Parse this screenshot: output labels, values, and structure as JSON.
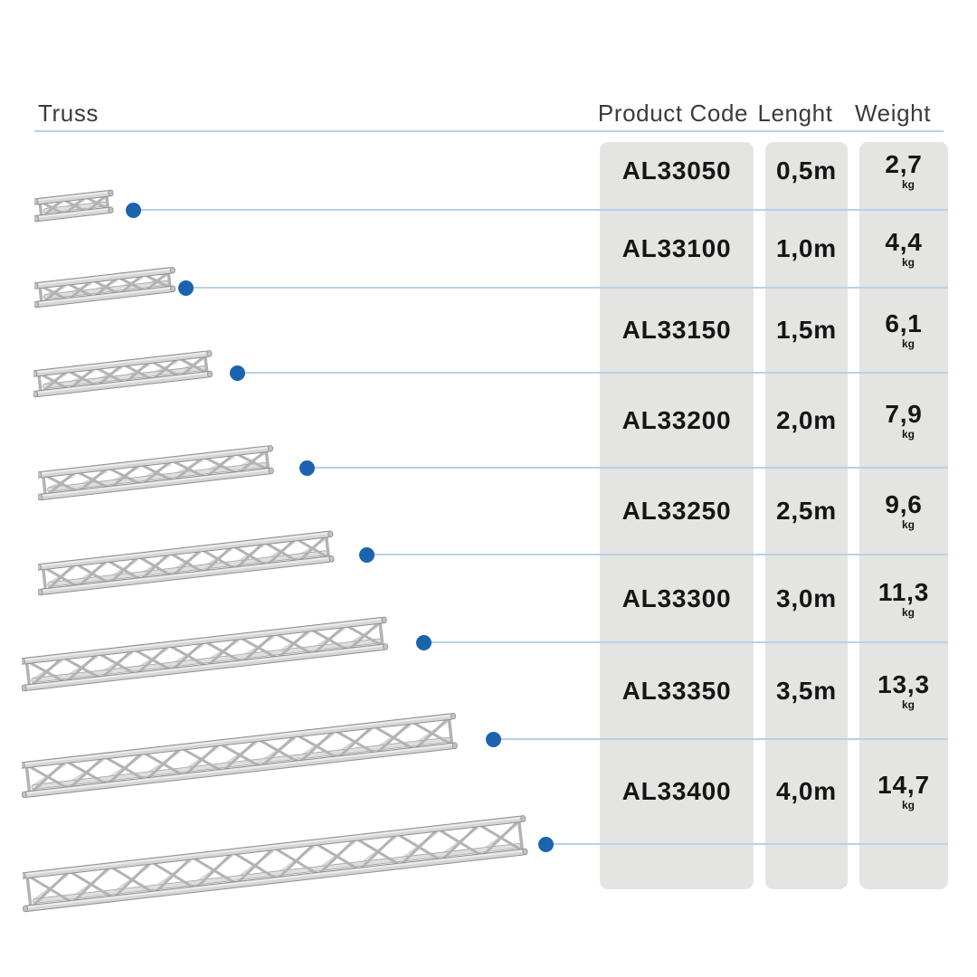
{
  "page": {
    "background": "#ffffff"
  },
  "table": {
    "truss_label": "Truss",
    "headers": {
      "product_code": "Product Code",
      "length": "Lenght",
      "weight": "Weight"
    },
    "weight_unit": "kg",
    "rows": [
      {
        "code": "AL33050",
        "length": "0,5m",
        "weight": "2,7"
      },
      {
        "code": "AL33100",
        "length": "1,0m",
        "weight": "4,4"
      },
      {
        "code": "AL33150",
        "length": "1,5m",
        "weight": "6,1"
      },
      {
        "code": "AL33200",
        "length": "2,0m",
        "weight": "7,9"
      },
      {
        "code": "AL33250",
        "length": "2,5m",
        "weight": "9,6"
      },
      {
        "code": "AL33300",
        "length": "3,0m",
        "weight": "11,3"
      },
      {
        "code": "AL33350",
        "length": "3,5m",
        "weight": "13,3"
      },
      {
        "code": "AL33400",
        "length": "4,0m",
        "weight": "14,7"
      }
    ]
  },
  "icons": {
    "row_marker": "blue-dot",
    "truss_illustration": "aluminium-triangle-truss"
  },
  "colors": {
    "accent_blue": "#1b63ad",
    "line_blue": "#b7d2e8",
    "column_gray": "#e4e4e2",
    "header_text": "#3b3b3b",
    "value_text": "#151515"
  },
  "chart_data": {
    "type": "table",
    "title": "Truss product sizes",
    "columns": [
      "Product Code",
      "Lenght",
      "Weight"
    ],
    "rows": [
      [
        "AL33050",
        "0,5m",
        "2,7 kg"
      ],
      [
        "AL33100",
        "1,0m",
        "4,4 kg"
      ],
      [
        "AL33150",
        "1,5m",
        "6,1 kg"
      ],
      [
        "AL33200",
        "2,0m",
        "7,9 kg"
      ],
      [
        "AL33250",
        "2,5m",
        "9,6 kg"
      ],
      [
        "AL33300",
        "3,0m",
        "11,3 kg"
      ],
      [
        "AL33350",
        "3,5m",
        "13,3 kg"
      ],
      [
        "AL33400",
        "4,0m",
        "14,7 kg"
      ]
    ]
  }
}
